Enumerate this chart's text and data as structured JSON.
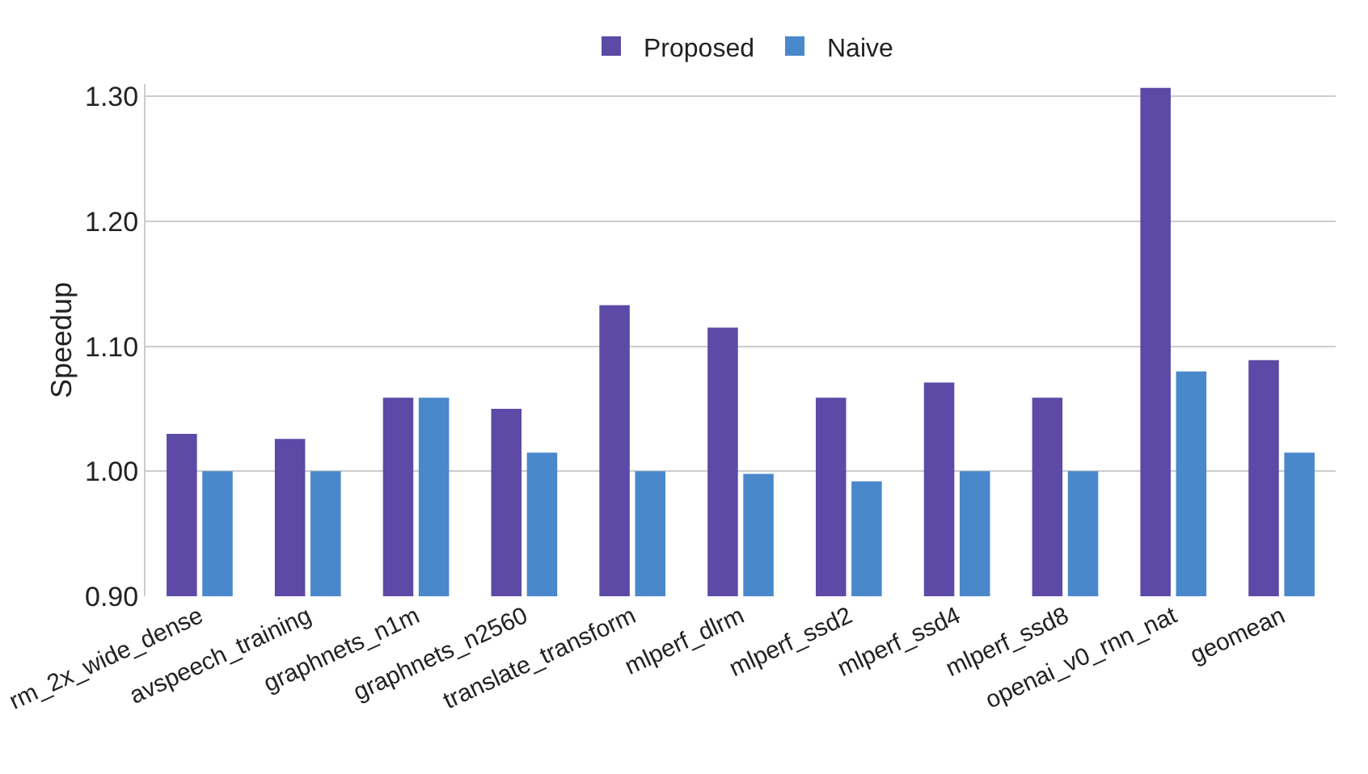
{
  "chart_data": {
    "type": "bar",
    "ylabel": "Speedup",
    "categories": [
      "rm_2x_wide_dense",
      "avspeech_training",
      "graphnets_n1m",
      "graphnets_n2560",
      "translate_transform",
      "mlperf_dlrm",
      "mlperf_ssd2",
      "mlperf_ssd4",
      "mlperf_ssd8",
      "openai_v0_rnn_nat",
      "geomean"
    ],
    "series": [
      {
        "name": "Proposed",
        "color": "#5c4aa6",
        "values": [
          1.03,
          1.026,
          1.059,
          1.05,
          1.133,
          1.115,
          1.059,
          1.071,
          1.059,
          1.307,
          1.089
        ]
      },
      {
        "name": "Naive",
        "color": "#4a88cc",
        "values": [
          1.0,
          1.0,
          1.059,
          1.015,
          1.0,
          0.998,
          0.992,
          1.0,
          1.0,
          1.08,
          1.015
        ]
      }
    ],
    "ylim": [
      0.9,
      1.31
    ],
    "yticks": [
      {
        "value": 0.9,
        "label": "0.90"
      },
      {
        "value": 1.0,
        "label": "1.00"
      },
      {
        "value": 1.1,
        "label": "1.10"
      },
      {
        "value": 1.2,
        "label": "1.20"
      },
      {
        "value": 1.3,
        "label": "1.30"
      }
    ],
    "grid": "y",
    "legend": "top"
  }
}
